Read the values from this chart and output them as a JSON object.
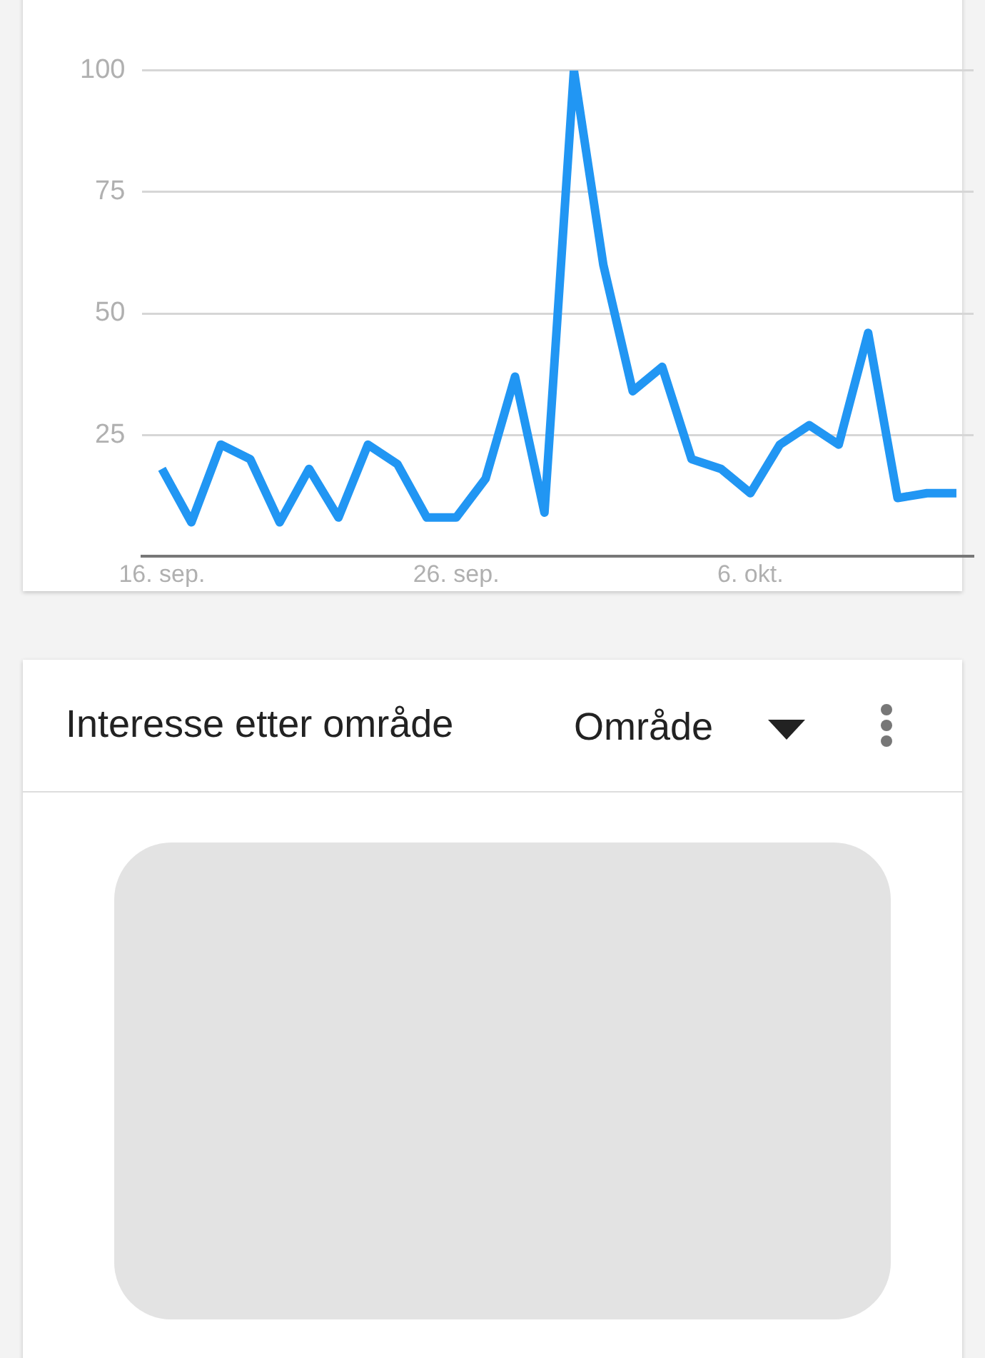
{
  "chart_data": [
    {
      "type": "line",
      "x": [
        "--09-16",
        "--09-17",
        "--09-18",
        "--09-19",
        "--09-20",
        "--09-21",
        "--09-22",
        "--09-23",
        "--09-24",
        "--09-25",
        "--09-26",
        "--09-27",
        "--09-28",
        "--09-29",
        "--09-30",
        "--10-01",
        "--10-02",
        "--10-03",
        "--10-04",
        "--10-05",
        "--10-06",
        "--10-07",
        "--10-08",
        "--10-09",
        "--10-10",
        "--10-11",
        "--10-12",
        "--10-13"
      ],
      "values": [
        18,
        7,
        23,
        20,
        7,
        18,
        8,
        23,
        19,
        8,
        8,
        16,
        37,
        9,
        100,
        60,
        34,
        39,
        20,
        18,
        13,
        23,
        27,
        23,
        46,
        12,
        13,
        13
      ],
      "color": "#2196f3",
      "xlim": [
        "--09-15T08:00",
        "--10-13T14:00"
      ],
      "xticks": [
        {
          "value": "--09-16",
          "label": "16. sep."
        },
        {
          "value": "--09-26",
          "label": "26. sep."
        },
        {
          "value": "--10-06",
          "label": "6. okt."
        }
      ],
      "ylim": [
        0,
        100
      ],
      "yticks": [
        {
          "value": 0,
          "label": null
        },
        25,
        50,
        75,
        100
      ],
      "grid": "y"
    },
    {
      "type": "other",
      "title": "Interesse etter område",
      "annotations": [
        "Område"
      ]
    }
  ]
}
